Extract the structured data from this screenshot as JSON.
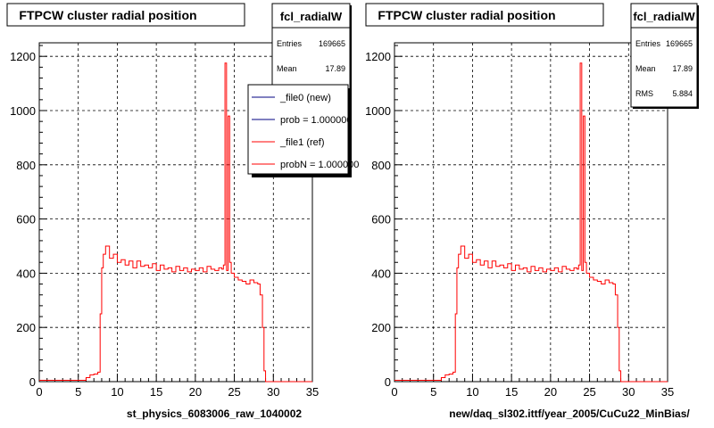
{
  "page": {
    "footer_text": ""
  },
  "chart_data": [
    {
      "type": "histogram",
      "title": "FTPCW cluster radial position",
      "xlabel": "st_physics_6083006_raw_1040002",
      "ylabel": "",
      "xlim": [
        0,
        35
      ],
      "ylim": [
        0,
        1250
      ],
      "xticks": [
        "0",
        "5",
        "10",
        "15",
        "20",
        "25",
        "30",
        "35"
      ],
      "yticks": [
        "0",
        "200",
        "400",
        "600",
        "800",
        "1000",
        "1200"
      ],
      "grid": true,
      "stats_box": {
        "name": "fcl_radialW",
        "rows": [
          {
            "label": "Entries",
            "value": "169665"
          },
          {
            "label": "Mean",
            "value": "17.89"
          }
        ]
      },
      "legend": {
        "placement": "top-right",
        "entries": [
          {
            "label": "_file0 (new)",
            "color": "#000080"
          },
          {
            "label": "prob = 1.000000",
            "color": "#000080"
          },
          {
            "label": "_file1 (ref)",
            "color": "#ff0000"
          },
          {
            "label": "probN = 1.000000",
            "color": "#ff0000"
          }
        ]
      },
      "series": [
        {
          "name": "_file1 (ref)",
          "color": "#ff0000",
          "x": [
            0,
            5.5,
            6,
            6.5,
            7,
            7.5,
            7.8,
            8,
            8.2,
            8.5,
            9,
            9.5,
            10,
            10.5,
            11,
            11.5,
            12,
            12.5,
            13,
            13.5,
            14,
            14.5,
            15,
            15.5,
            16,
            16.5,
            17,
            17.5,
            18,
            18.5,
            19,
            19.5,
            20,
            20.5,
            21,
            21.5,
            22,
            22.5,
            23,
            23.4,
            23.6,
            23.8,
            24,
            24.2,
            24.4,
            24.6,
            25,
            25.5,
            26,
            26.5,
            27,
            27.5,
            28,
            28.3,
            28.6,
            28.8,
            29,
            35
          ],
          "y": [
            5,
            5,
            15,
            25,
            28,
            35,
            250,
            420,
            470,
            500,
            455,
            470,
            440,
            450,
            430,
            445,
            420,
            445,
            425,
            430,
            420,
            435,
            410,
            430,
            415,
            420,
            405,
            425,
            410,
            420,
            405,
            415,
            410,
            420,
            405,
            425,
            415,
            410,
            420,
            415,
            430,
            1175,
            410,
            980,
            440,
            400,
            385,
            375,
            370,
            360,
            375,
            365,
            360,
            320,
            200,
            40,
            0,
            0
          ]
        }
      ]
    },
    {
      "type": "histogram",
      "title": "FTPCW cluster radial position",
      "xlabel": "new/daq_sl302.ittf/year_2005/CuCu22_MinBias/",
      "ylabel": "",
      "xlim": [
        0,
        35
      ],
      "ylim": [
        0,
        1250
      ],
      "xticks": [
        "0",
        "5",
        "10",
        "15",
        "20",
        "25",
        "30",
        "35"
      ],
      "yticks": [
        "0",
        "200",
        "400",
        "600",
        "800",
        "1000",
        "1200"
      ],
      "grid": true,
      "stats_box": {
        "name": "fcl_radialW",
        "rows": [
          {
            "label": "Entries",
            "value": "169665"
          },
          {
            "label": "Mean",
            "value": "17.89"
          },
          {
            "label": "RMS",
            "value": "5.884"
          }
        ]
      },
      "series": [
        {
          "name": "",
          "color": "#ff0000",
          "x": [
            0,
            5.5,
            6,
            6.5,
            7,
            7.5,
            7.8,
            8,
            8.2,
            8.5,
            9,
            9.5,
            10,
            10.5,
            11,
            11.5,
            12,
            12.5,
            13,
            13.5,
            14,
            14.5,
            15,
            15.5,
            16,
            16.5,
            17,
            17.5,
            18,
            18.5,
            19,
            19.5,
            20,
            20.5,
            21,
            21.5,
            22,
            22.5,
            23,
            23.4,
            23.6,
            23.8,
            24,
            24.2,
            24.4,
            24.6,
            25,
            25.5,
            26,
            26.5,
            27,
            27.5,
            28,
            28.3,
            28.6,
            28.8,
            29,
            35
          ],
          "y": [
            5,
            5,
            15,
            25,
            28,
            35,
            250,
            420,
            470,
            500,
            455,
            470,
            440,
            450,
            430,
            445,
            420,
            445,
            425,
            430,
            420,
            435,
            410,
            430,
            415,
            420,
            405,
            425,
            410,
            420,
            405,
            415,
            410,
            420,
            405,
            425,
            415,
            410,
            420,
            415,
            430,
            1175,
            410,
            980,
            440,
            400,
            385,
            375,
            370,
            360,
            375,
            365,
            360,
            320,
            200,
            40,
            0,
            0
          ]
        }
      ]
    }
  ]
}
